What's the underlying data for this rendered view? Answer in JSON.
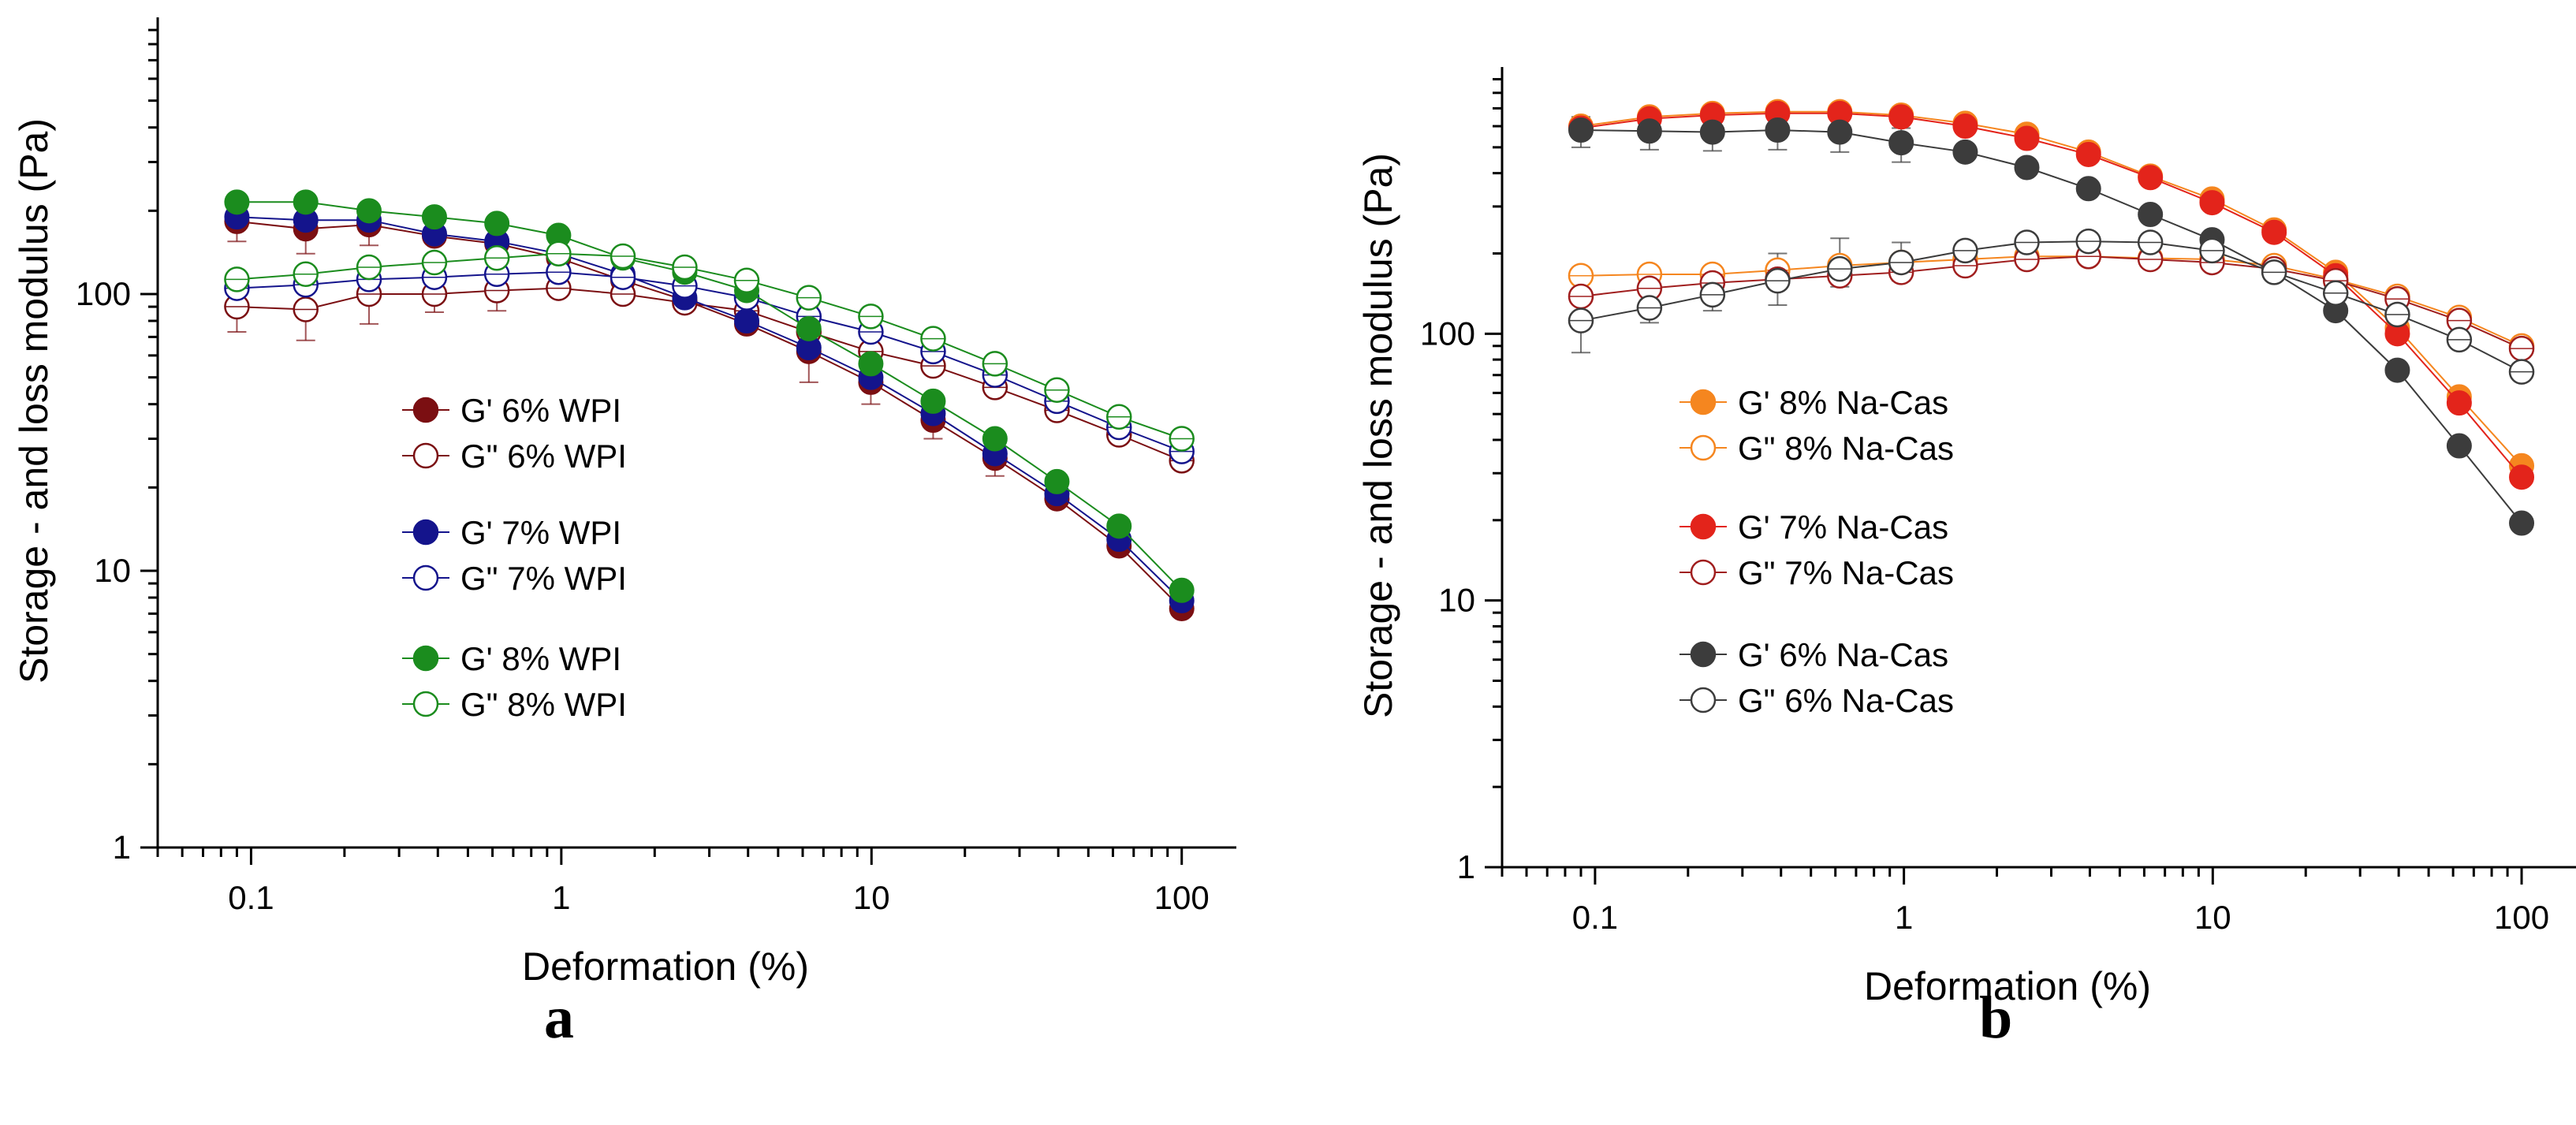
{
  "panels": [
    {
      "letter": "a"
    },
    {
      "letter": "b"
    }
  ],
  "chart_data": [
    {
      "type": "scatter",
      "title": "",
      "xlabel": "Deformation (%)",
      "ylabel": "Storage - and loss modulus (Pa)",
      "xscale": "log",
      "yscale": "log",
      "xlim": [
        0.05,
        150
      ],
      "ylim": [
        1,
        1000
      ],
      "x_ticks": [
        "0.1",
        "1",
        "10",
        "100"
      ],
      "y_ticks": [
        "1",
        "10",
        "100"
      ],
      "legend_position": "center",
      "x": [
        0.09,
        0.15,
        0.24,
        0.39,
        0.62,
        0.98,
        1.58,
        2.5,
        3.96,
        6.28,
        9.95,
        15.8,
        25,
        39.6,
        62.8,
        100
      ],
      "series": [
        {
          "name": "G' 6% WPI",
          "color": "#7b0f12",
          "filled": true,
          "values": [
            183,
            172,
            178,
            162,
            152,
            135,
            112,
            95,
            78,
            62,
            48,
            35,
            25.5,
            18.2,
            12.3,
            7.3
          ]
        },
        {
          "name": "G\" 6% WPI",
          "color": "#7b0f12",
          "filled": false,
          "values": [
            90,
            88,
            100,
            100,
            103,
            105,
            100,
            93,
            87,
            73,
            62,
            55,
            46,
            38,
            31,
            25
          ]
        },
        {
          "name": "G' 7% WPI",
          "color": "#14148c",
          "filled": true,
          "values": [
            190,
            185,
            185,
            165,
            155,
            140,
            118,
            97,
            80,
            64,
            50,
            37,
            26.5,
            19,
            13,
            7.8
          ]
        },
        {
          "name": "G\" 7% WPI",
          "color": "#14148c",
          "filled": false,
          "values": [
            105,
            108,
            113,
            115,
            118,
            120,
            115,
            107,
            97,
            83,
            73,
            62,
            51,
            41,
            33,
            27
          ]
        },
        {
          "name": "G' 8% WPI",
          "color": "#1b8c1e",
          "filled": true,
          "values": [
            215,
            215,
            200,
            190,
            180,
            163,
            135,
            120,
            103,
            75,
            56,
            41,
            30,
            21,
            14.5,
            8.5
          ]
        },
        {
          "name": "G\" 8% WPI",
          "color": "#1b8c1e",
          "filled": false,
          "values": [
            113,
            118,
            125,
            130,
            135,
            140,
            137,
            125,
            112,
            97,
            83,
            69,
            56,
            45,
            36,
            30
          ]
        }
      ],
      "error_bars": [
        {
          "series": "G\" 6% WPI",
          "x": [
            0.09,
            0.15,
            0.24,
            0.39,
            0.62,
            6.28
          ],
          "lower": [
            73,
            68,
            78,
            86,
            87,
            48
          ],
          "upper": [
            110,
            110,
            128,
            118,
            122,
            90
          ]
        },
        {
          "series": "G' 6% WPI",
          "x": [
            0.09,
            0.15,
            0.24,
            0.62,
            9.95,
            15.8,
            25
          ],
          "lower": [
            155,
            140,
            150,
            132,
            40,
            30,
            22
          ],
          "upper": [
            215,
            205,
            208,
            175,
            57,
            42,
            30
          ]
        }
      ]
    },
    {
      "type": "scatter",
      "title": "",
      "xlabel": "Deformation (%)",
      "ylabel": "Storage - and loss modulus (Pa)",
      "xscale": "log",
      "yscale": "log",
      "xlim": [
        0.05,
        150
      ],
      "ylim": [
        1,
        1000
      ],
      "x_ticks": [
        "0.1",
        "1",
        "10",
        "100"
      ],
      "y_ticks": [
        "1",
        "10",
        "100"
      ],
      "legend_position": "center-left",
      "x": [
        0.09,
        0.15,
        0.24,
        0.39,
        0.62,
        0.98,
        1.58,
        2.5,
        3.96,
        6.28,
        9.95,
        15.8,
        25,
        39.6,
        62.8,
        100
      ],
      "series": [
        {
          "name": "G' 8% Na-Cas",
          "color": "#f5861f",
          "filled": true,
          "values": [
            600,
            650,
            670,
            680,
            680,
            660,
            615,
            560,
            480,
            390,
            320,
            245,
            170,
            105,
            58,
            32
          ]
        },
        {
          "name": "G\" 8% Na-Cas",
          "color": "#f5861f",
          "filled": false,
          "values": [
            165,
            167,
            167,
            173,
            180,
            185,
            190,
            195,
            195,
            192,
            190,
            180,
            160,
            138,
            115,
            90
          ]
        },
        {
          "name": "G' 7% Na-Cas",
          "color": "#e3241b",
          "filled": true,
          "values": [
            590,
            640,
            660,
            670,
            670,
            650,
            600,
            540,
            470,
            385,
            310,
            240,
            165,
            100,
            55,
            29
          ]
        },
        {
          "name": "G\" 7% Na-Cas",
          "color": "#a01e1e",
          "filled": false,
          "values": [
            138,
            148,
            155,
            160,
            165,
            170,
            180,
            190,
            195,
            190,
            185,
            175,
            158,
            135,
            112,
            88
          ]
        },
        {
          "name": "G' 6% Na-Cas",
          "color": "#3c3c3c",
          "filled": true,
          "values": [
            580,
            575,
            570,
            580,
            570,
            520,
            480,
            420,
            350,
            280,
            225,
            170,
            122,
            73,
            38,
            19.5
          ]
        },
        {
          "name": "G\" 6% Na-Cas",
          "color": "#3c3c3c",
          "filled": false,
          "values": [
            112,
            125,
            140,
            158,
            175,
            185,
            205,
            220,
            222,
            220,
            205,
            170,
            142,
            118,
            95,
            72
          ]
        }
      ],
      "error_bars": [
        {
          "series": "G\" 6% Na-Cas",
          "x": [
            0.09,
            0.15,
            0.24,
            0.39,
            0.62,
            0.98
          ],
          "lower": [
            85,
            110,
            122,
            128,
            150,
            158
          ],
          "upper": [
            140,
            145,
            160,
            200,
            228,
            220
          ]
        },
        {
          "series": "G' 6% Na-Cas",
          "x": [
            0.09,
            0.15,
            0.24,
            0.39,
            0.62,
            0.98
          ],
          "lower": [
            500,
            490,
            485,
            490,
            480,
            440
          ],
          "upper": [
            650,
            650,
            640,
            650,
            640,
            590
          ]
        }
      ]
    }
  ]
}
